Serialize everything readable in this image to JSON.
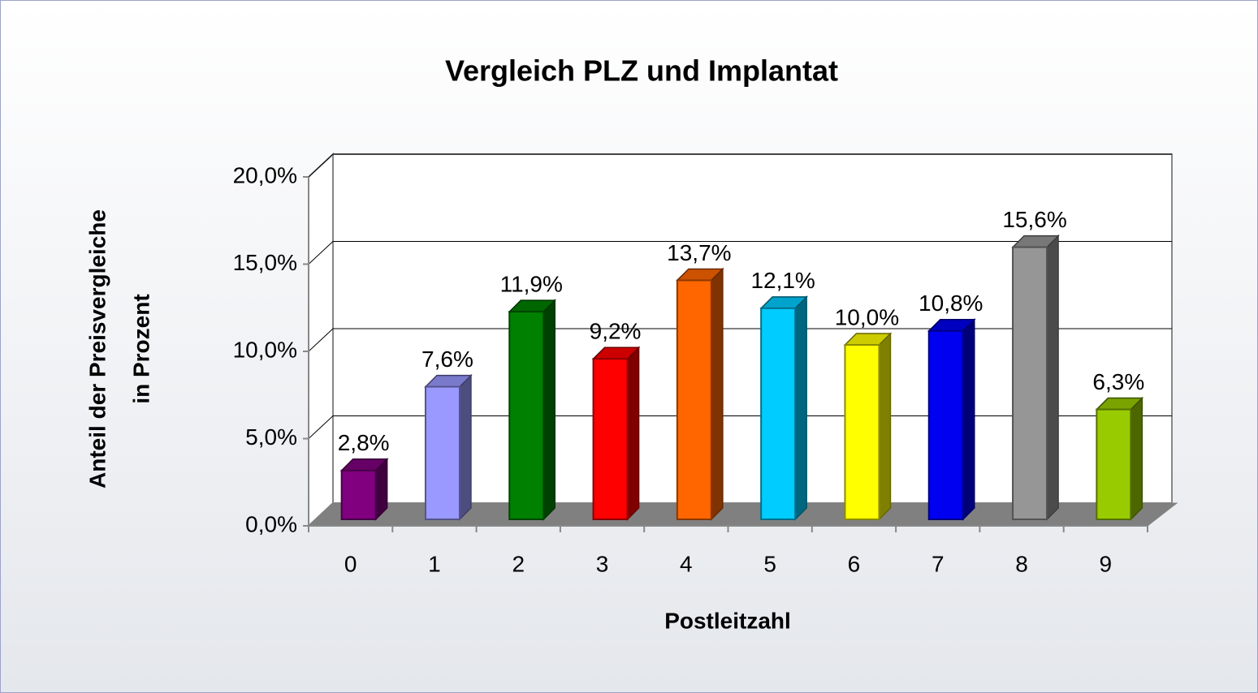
{
  "chart_data": {
    "type": "bar3d",
    "title": "Vergleich PLZ und Implantat",
    "xlabel": "Postleitzahl",
    "ylabel": [
      "Anteil der Preisvergleiche",
      "in Prozent"
    ],
    "categories": [
      "0",
      "1",
      "2",
      "3",
      "4",
      "5",
      "6",
      "7",
      "8",
      "9"
    ],
    "values": [
      2.8,
      7.6,
      11.9,
      9.2,
      13.7,
      12.1,
      10.0,
      10.8,
      15.6,
      6.3
    ],
    "value_labels": [
      "2,8%",
      "7,6%",
      "11,9%",
      "9,2%",
      "13,7%",
      "12,1%",
      "10,0%",
      "10,8%",
      "15,6%",
      "6,3%"
    ],
    "colors": [
      "#800080",
      "#9999ff",
      "#008000",
      "#ff0000",
      "#ff6600",
      "#00ccff",
      "#ffff00",
      "#0000f0",
      "#969696",
      "#99cc00"
    ],
    "ylim": [
      0,
      20
    ],
    "yticks": [
      {
        "value": 0,
        "label": "0,0%"
      },
      {
        "value": 5,
        "label": "5,0%"
      },
      {
        "value": 10,
        "label": "10,0%"
      },
      {
        "value": 15,
        "label": "15,0%"
      },
      {
        "value": 20,
        "label": "20,0%"
      }
    ],
    "grid": true
  }
}
